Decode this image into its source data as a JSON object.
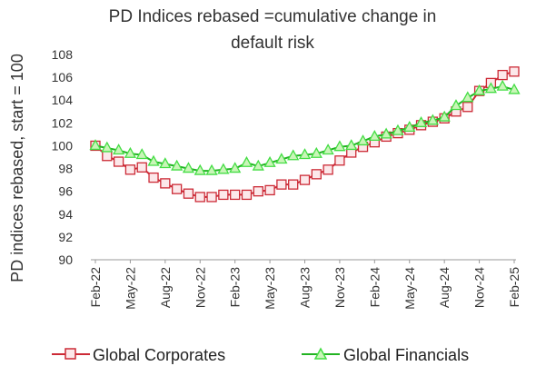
{
  "chart_data": {
    "type": "line",
    "title_lines": [
      "PD Indices rebased =cumulative change in",
      "default risk"
    ],
    "xlabel": "",
    "ylabel": "PD indices rebased, start = 100",
    "ylim": [
      90,
      108
    ],
    "yticks": [
      90,
      92,
      94,
      96,
      98,
      100,
      102,
      104,
      106,
      108
    ],
    "grid": false,
    "legend_position": "bottom",
    "x": [
      "Feb-22",
      "Mar-22",
      "Apr-22",
      "May-22",
      "Jun-22",
      "Jul-22",
      "Aug-22",
      "Sep-22",
      "Oct-22",
      "Nov-22",
      "Dec-22",
      "Jan-23",
      "Feb-23",
      "Mar-23",
      "Apr-23",
      "May-23",
      "Jun-23",
      "Jul-23",
      "Aug-23",
      "Sep-23",
      "Oct-23",
      "Nov-23",
      "Dec-23",
      "Jan-24",
      "Feb-24",
      "Mar-24",
      "Apr-24",
      "May-24",
      "Jun-24",
      "Jul-24",
      "Aug-24",
      "Sep-24",
      "Oct-24",
      "Nov-24",
      "Dec-24",
      "Jan-25",
      "Feb-25"
    ],
    "xtick_labels": [
      "Feb-22",
      "May-22",
      "Aug-22",
      "Nov-22",
      "Feb-23",
      "May-23",
      "Aug-23",
      "Nov-23",
      "Feb-24",
      "May-24",
      "Aug-24",
      "Nov-24",
      "Feb-25"
    ],
    "series": [
      {
        "name": "Global Corporates",
        "color": "#cc2a36",
        "marker": "square",
        "values": [
          100.0,
          99.1,
          98.6,
          97.9,
          98.1,
          97.2,
          96.7,
          96.2,
          95.8,
          95.5,
          95.5,
          95.7,
          95.7,
          95.7,
          96.0,
          96.1,
          96.6,
          96.6,
          97.0,
          97.5,
          97.9,
          98.7,
          99.4,
          99.9,
          100.3,
          100.8,
          101.1,
          101.4,
          101.8,
          102.1,
          102.4,
          103.0,
          103.4,
          104.8,
          105.5,
          106.2,
          106.5
        ]
      },
      {
        "name": "Global Financials",
        "color": "#22b322",
        "marker": "triangle",
        "values": [
          100.0,
          99.8,
          99.6,
          99.3,
          99.2,
          98.6,
          98.4,
          98.2,
          98.0,
          97.8,
          97.8,
          97.9,
          98.0,
          98.5,
          98.2,
          98.5,
          98.8,
          99.1,
          99.2,
          99.3,
          99.6,
          99.9,
          100.0,
          100.4,
          100.8,
          101.0,
          101.3,
          101.6,
          102.0,
          102.2,
          102.5,
          103.5,
          104.2,
          104.8,
          105.0,
          105.2,
          104.9
        ]
      }
    ]
  }
}
